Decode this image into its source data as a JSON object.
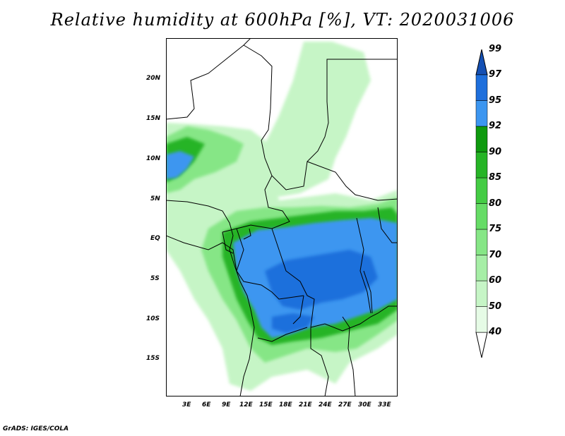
{
  "title": "Relative humidity at 600hPa [%], VT: 2020031006",
  "credit": "GrADS: IGES/COLA",
  "latitude_labels": [
    "20N",
    "15N",
    "10N",
    "5N",
    "EQ",
    "5S",
    "10S",
    "15S"
  ],
  "longitude_labels": [
    "3E",
    "6E",
    "9E",
    "12E",
    "15E",
    "18E",
    "21E",
    "24E",
    "27E",
    "30E",
    "33E"
  ],
  "colorbar": {
    "levels": [
      "40",
      "50",
      "60",
      "70",
      "75",
      "80",
      "85",
      "90",
      "92",
      "95",
      "97",
      "99"
    ],
    "colors": [
      "#ffffff",
      "#e6fbe6",
      "#c6f5c6",
      "#a6eea6",
      "#86e686",
      "#66dc66",
      "#44cc44",
      "#26b426",
      "#0e9a0e",
      "#3c96f0",
      "#1e6fdc",
      "#1450b4"
    ]
  },
  "map": {
    "variable": "Relative humidity",
    "level": "600hPa",
    "unit": "%",
    "valid_time": "2020031006"
  }
}
